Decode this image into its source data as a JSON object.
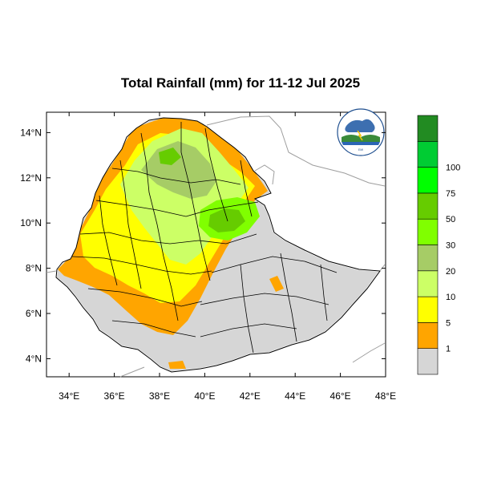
{
  "title": "Total Rainfall (mm) for 11-12 Jul 2025",
  "map": {
    "lon_range": [
      33,
      48
    ],
    "lat_range": [
      3.2,
      14.9
    ],
    "x_ticks": [
      {
        "lon": 34,
        "label": "34°E"
      },
      {
        "lon": 36,
        "label": "36°E"
      },
      {
        "lon": 38,
        "label": "38°E"
      },
      {
        "lon": 40,
        "label": "40°E"
      },
      {
        "lon": 42,
        "label": "42°E"
      },
      {
        "lon": 44,
        "label": "44°E"
      },
      {
        "lon": 46,
        "label": "46°E"
      },
      {
        "lon": 48,
        "label": "48°E"
      }
    ],
    "y_ticks": [
      {
        "lat": 4,
        "label": "4°N"
      },
      {
        "lat": 6,
        "label": "6°N"
      },
      {
        "lat": 8,
        "label": "8°N"
      },
      {
        "lat": 10,
        "label": "10°N"
      },
      {
        "lat": 12,
        "label": "12°N"
      },
      {
        "lat": 14,
        "label": "14°N"
      }
    ]
  },
  "colorbar": {
    "bins": [
      {
        "color": "#d6d6d6"
      },
      {
        "color": "#ffa500"
      },
      {
        "color": "#ffff00"
      },
      {
        "color": "#ccff66"
      },
      {
        "color": "#a6cc66"
      },
      {
        "color": "#80ff00"
      },
      {
        "color": "#66cc00"
      },
      {
        "color": "#00ff00"
      },
      {
        "color": "#00cc33"
      },
      {
        "color": "#228b22"
      }
    ],
    "labels": [
      "1",
      "5",
      "10",
      "20",
      "30",
      "50",
      "75",
      "100"
    ]
  },
  "colors": {
    "land_dry": "#d6d6d6",
    "ocean": "#ffffff",
    "neighbor_border": "#9e9e9e",
    "region_border": "#000000"
  }
}
